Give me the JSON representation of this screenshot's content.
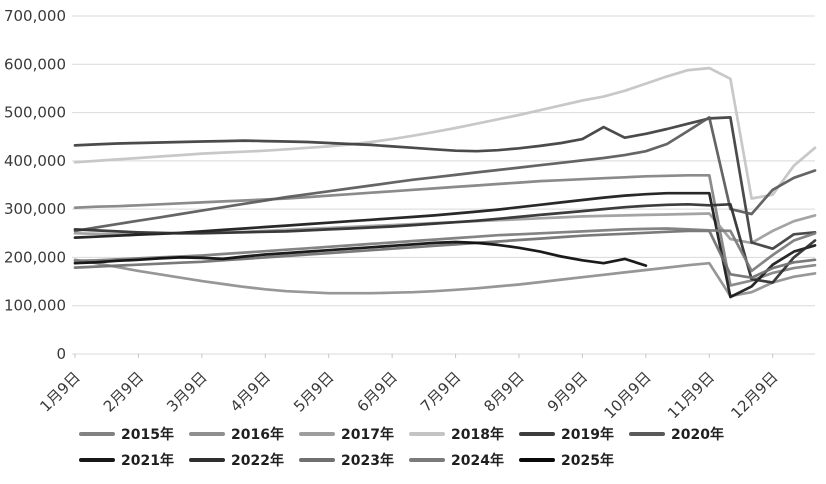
{
  "page": {
    "background": "#ffffff"
  },
  "chart_data": {
    "type": "line",
    "title": "",
    "xlabel": "",
    "ylabel": "",
    "grid": true,
    "legend_position": "bottom",
    "colors": {
      "gridline": "#d9d9d9",
      "axis_text": "#3a3a3a",
      "tick_mark": "#c6c6c6"
    },
    "x_axis": {
      "tick_labels": [
        "1月9日",
        "2月9日",
        "3月9日",
        "4月9日",
        "5月9日",
        "6月9日",
        "7月9日",
        "8月9日",
        "9月9日",
        "10月9日",
        "11月9日",
        "12月9日"
      ],
      "points_per_month": 3,
      "label_rotation_deg": -45
    },
    "y_axis": {
      "min": 0,
      "max": 700000,
      "step": 100000,
      "tick_labels": [
        "0",
        "100,000",
        "200,000",
        "300,000",
        "400,000",
        "500,000",
        "600,000",
        "700,000"
      ]
    },
    "series": [
      {
        "name": "2015年",
        "color": "#828282",
        "values": [
          303000,
          305000,
          306000,
          308000,
          310000,
          312000,
          314000,
          316000,
          318000,
          320000,
          322000,
          325000,
          328000,
          331000,
          334000,
          337000,
          340000,
          343000,
          346000,
          349000,
          352000,
          355000,
          358000,
          360000,
          362000,
          364000,
          366000,
          368000,
          369000,
          370000,
          370000,
          142000,
          152000,
          168000,
          178000,
          184000
        ]
      },
      {
        "name": "2016年",
        "color": "#8f8f8f",
        "values": [
          195000,
          188000,
          180000,
          172000,
          165000,
          158000,
          151000,
          145000,
          139000,
          134000,
          130000,
          128000,
          126000,
          126000,
          126000,
          127000,
          128000,
          130000,
          133000,
          136000,
          140000,
          144000,
          149000,
          154000,
          159000,
          164000,
          169000,
          174000,
          179000,
          184000,
          188000,
          120000,
          128000,
          148000,
          160000,
          167000
        ]
      },
      {
        "name": "2017年",
        "color": "#9d9d9d",
        "values": [
          250000,
          249000,
          248000,
          248000,
          249000,
          250000,
          251000,
          252000,
          253000,
          255000,
          257000,
          259000,
          261000,
          263000,
          265000,
          267000,
          269000,
          271000,
          273000,
          275000,
          277000,
          279000,
          281000,
          283000,
          285000,
          286000,
          287000,
          288000,
          289000,
          290000,
          291000,
          238000,
          230000,
          255000,
          275000,
          287000
        ]
      },
      {
        "name": "2018年",
        "color": "#c4c4c4",
        "values": [
          397000,
          400000,
          403000,
          406000,
          409000,
          412000,
          415000,
          417000,
          419000,
          421000,
          424000,
          427000,
          430000,
          434000,
          439000,
          445000,
          452000,
          460000,
          468000,
          477000,
          486000,
          495000,
          505000,
          515000,
          525000,
          533000,
          545000,
          560000,
          575000,
          588000,
          592000,
          570000,
          322000,
          330000,
          390000,
          427000
        ]
      },
      {
        "name": "2019年",
        "color": "#3d3d3d",
        "values": [
          432000,
          434000,
          436000,
          437000,
          438000,
          439000,
          440000,
          441000,
          442000,
          441000,
          440000,
          439000,
          437000,
          435000,
          433000,
          430000,
          427000,
          424000,
          421000,
          420000,
          422000,
          426000,
          431000,
          437000,
          445000,
          470000,
          448000,
          456000,
          466000,
          477000,
          488000,
          490000,
          231000,
          218000,
          248000,
          252000
        ]
      },
      {
        "name": "2020年",
        "color": "#595959",
        "values": [
          255000,
          262000,
          269000,
          276000,
          283000,
          290000,
          297000,
          304000,
          311000,
          318000,
          325000,
          331000,
          337000,
          343000,
          349000,
          355000,
          361000,
          366000,
          371000,
          376000,
          381000,
          386000,
          391000,
          396000,
          401000,
          406000,
          412000,
          420000,
          435000,
          462000,
          490000,
          300000,
          290000,
          340000,
          365000,
          380000
        ]
      },
      {
        "name": "2021年",
        "color": "#181818",
        "values": [
          241000,
          243000,
          245000,
          247000,
          249000,
          251000,
          254000,
          257000,
          260000,
          263000,
          266000,
          269000,
          272000,
          275000,
          278000,
          281000,
          284000,
          287000,
          291000,
          295000,
          299000,
          304000,
          309000,
          314000,
          319000,
          324000,
          328000,
          331000,
          333000,
          333000,
          333000,
          118000,
          140000,
          185000,
          212000,
          225000
        ]
      },
      {
        "name": "2022年",
        "color": "#2e2e2e",
        "values": [
          258000,
          256000,
          254000,
          252000,
          251000,
          250000,
          250000,
          251000,
          252000,
          253000,
          254000,
          256000,
          258000,
          260000,
          262000,
          264000,
          267000,
          270000,
          273000,
          276000,
          280000,
          284000,
          288000,
          292000,
          296000,
          300000,
          304000,
          307000,
          309000,
          310000,
          308000,
          310000,
          155000,
          148000,
          200000,
          235000
        ]
      },
      {
        "name": "2023年",
        "color": "#707070",
        "values": [
          179000,
          181000,
          183000,
          185000,
          187000,
          189000,
          191000,
          194000,
          197000,
          200000,
          203000,
          206000,
          209000,
          212000,
          215000,
          218000,
          221000,
          224000,
          227000,
          230000,
          233000,
          236000,
          239000,
          242000,
          245000,
          247000,
          249000,
          251000,
          253000,
          255000,
          255000,
          165000,
          158000,
          178000,
          190000,
          195000
        ]
      },
      {
        "name": "2024年",
        "color": "#7b7b7b",
        "values": [
          193000,
          194000,
          196000,
          198000,
          200000,
          202000,
          204000,
          207000,
          210000,
          213000,
          216000,
          219000,
          222000,
          225000,
          228000,
          231000,
          234000,
          237000,
          240000,
          243000,
          246000,
          248000,
          250000,
          252000,
          254000,
          256000,
          258000,
          259000,
          260000,
          258000,
          256000,
          255000,
          172000,
          205000,
          235000,
          250000
        ]
      },
      {
        "name": "2025年",
        "color": "#0a0a0a",
        "values": [
          188000,
          190000,
          193000,
          195000,
          198000,
          200000,
          199000,
          197000,
          202000,
          206000,
          209000,
          212000,
          215000,
          218000,
          221000,
          224000,
          227000,
          230000,
          232000,
          230000,
          226000,
          220000,
          212000,
          202000,
          194000,
          188000,
          197000,
          183000
        ]
      }
    ]
  }
}
